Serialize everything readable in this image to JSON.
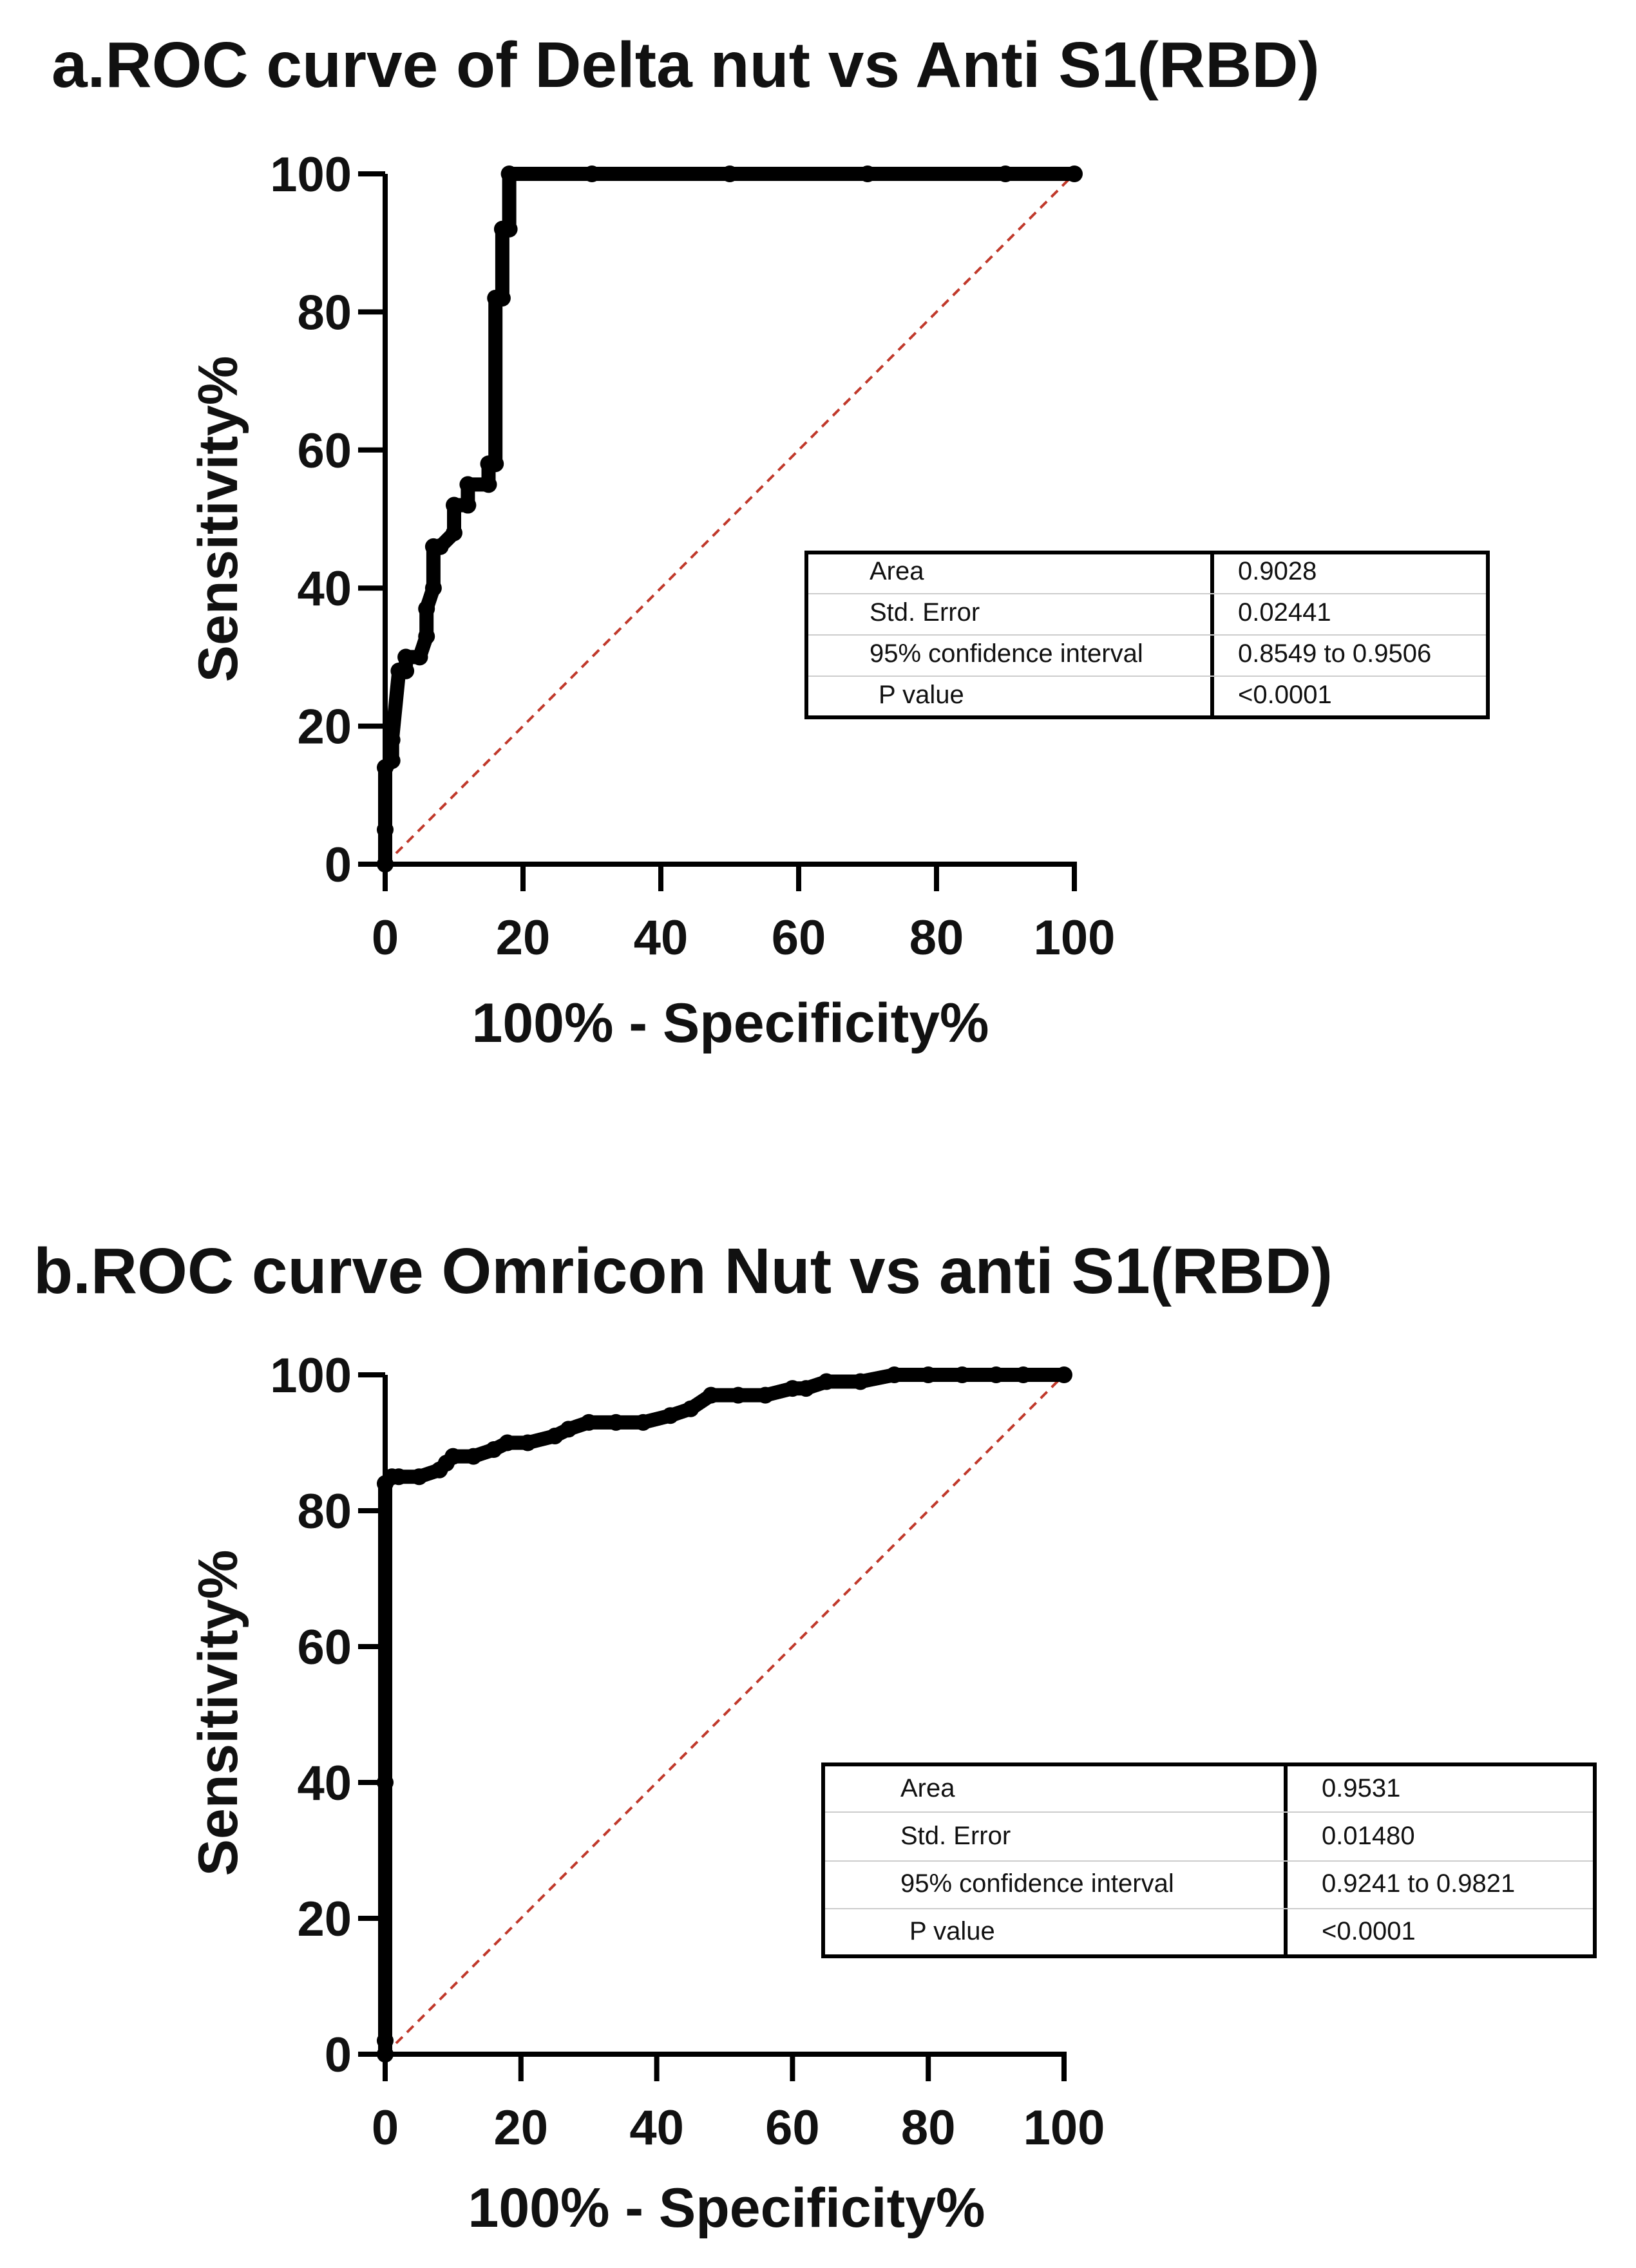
{
  "chart_data": [
    {
      "type": "line",
      "title": "a.ROC curve of Delta nut vs Anti S1(RBD)",
      "xlabel": "100% - Specificity%",
      "ylabel": "Sensitivity%",
      "xlim": [
        0,
        100
      ],
      "ylim": [
        0,
        100
      ],
      "xticks": [
        0,
        20,
        40,
        60,
        80,
        100
      ],
      "yticks": [
        0,
        20,
        40,
        60,
        80,
        100
      ],
      "reference_line": {
        "name": "chance",
        "x": [
          0,
          100
        ],
        "y": [
          0,
          100
        ],
        "color": "#c0392b",
        "style": "dashed"
      },
      "series": [
        {
          "name": "ROC",
          "x": [
            0,
            0,
            0,
            1,
            1,
            2,
            3,
            3,
            5,
            6,
            6,
            7,
            7,
            8,
            10,
            10,
            12,
            12,
            15,
            15,
            16,
            16,
            17,
            17,
            18,
            18,
            30,
            50,
            70,
            90,
            100
          ],
          "y": [
            0,
            5,
            14,
            15,
            18,
            28,
            28,
            30,
            30,
            33,
            37,
            40,
            46,
            46,
            48,
            52,
            52,
            55,
            55,
            58,
            58,
            82,
            82,
            92,
            92,
            100,
            100,
            100,
            100,
            100,
            100
          ]
        }
      ],
      "stats_table": [
        {
          "label": "Area",
          "value": "0.9028"
        },
        {
          "label": "Std. Error",
          "value": "0.02441"
        },
        {
          "label": "95% confidence interval",
          "value": "0.8549 to 0.9506"
        },
        {
          "label": "P value",
          "value": "<0.0001"
        }
      ]
    },
    {
      "type": "line",
      "title": "b.ROC curve Omricon Nut vs anti S1(RBD)",
      "xlabel": "100% - Specificity%",
      "ylabel": "Sensitivity%",
      "xlim": [
        0,
        100
      ],
      "ylim": [
        0,
        100
      ],
      "xticks": [
        0,
        20,
        40,
        60,
        80,
        100
      ],
      "yticks": [
        0,
        20,
        40,
        60,
        80,
        100
      ],
      "reference_line": {
        "name": "chance",
        "x": [
          0,
          100
        ],
        "y": [
          0,
          100
        ],
        "color": "#c0392b",
        "style": "dashed"
      },
      "series": [
        {
          "name": "ROC",
          "x": [
            0,
            0,
            0,
            0,
            1,
            2,
            5,
            8,
            9,
            10,
            13,
            16,
            18,
            21,
            25,
            27,
            30,
            34,
            38,
            42,
            45,
            48,
            52,
            56,
            60,
            62,
            65,
            70,
            75,
            80,
            85,
            90,
            94,
            100
          ],
          "y": [
            0,
            2,
            40,
            84,
            85,
            85,
            85,
            86,
            87,
            88,
            88,
            89,
            90,
            90,
            91,
            92,
            93,
            93,
            93,
            94,
            95,
            97,
            97,
            97,
            98,
            98,
            99,
            99,
            100,
            100,
            100,
            100,
            100,
            100
          ]
        }
      ],
      "stats_table": [
        {
          "label": "Area",
          "value": "0.9531"
        },
        {
          "label": "Std. Error",
          "value": "0.01480"
        },
        {
          "label": "95% confidence interval",
          "value": "0.9241 to 0.9821"
        },
        {
          "label": "P value",
          "value": "<0.0001"
        }
      ]
    }
  ]
}
